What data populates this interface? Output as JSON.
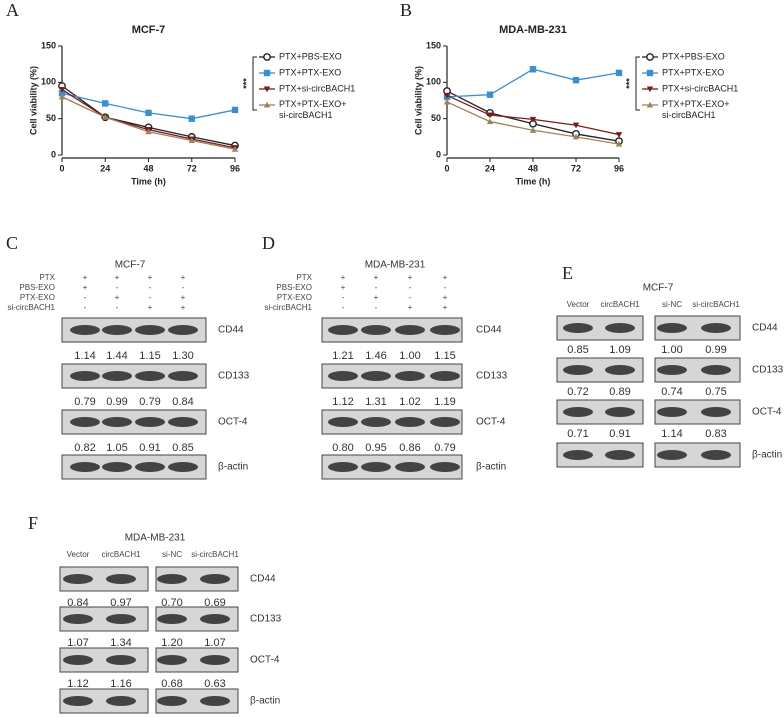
{
  "panel_labels": [
    "A",
    "B",
    "C",
    "D",
    "E",
    "F"
  ],
  "chart_data": [
    {
      "type": "line",
      "title": "MCF-7",
      "x_label": "Time (h)",
      "y_label": "Cell viability (%)",
      "x": [
        0,
        24,
        48,
        72,
        96
      ],
      "xlim": [
        0,
        96
      ],
      "xticks": [
        0,
        24,
        48,
        72,
        96
      ],
      "ylim": [
        0,
        150
      ],
      "yticks": [
        0,
        50,
        100,
        150
      ],
      "significance": "***",
      "series": [
        {
          "name": "PTX+PBS-EXO",
          "color": "#222222",
          "marker": "circle",
          "values": [
            95,
            52,
            38,
            25,
            13
          ]
        },
        {
          "name": "PTX+PTX-EXO",
          "color": "#3b8fd0",
          "marker": "square",
          "values": [
            85,
            71,
            58,
            50,
            62
          ]
        },
        {
          "name": "PTX+si-circBACH1",
          "color": "#7a1c1c",
          "marker": "triangle-down",
          "values": [
            90,
            52,
            35,
            22,
            10
          ]
        },
        {
          "name": "PTX+PTX-EXO+si-circBACH1",
          "color": "#a0825a",
          "marker": "triangle-up",
          "values": [
            80,
            52,
            32,
            20,
            8
          ]
        }
      ]
    },
    {
      "type": "line",
      "title": "MDA-MB-231",
      "x_label": "Time (h)",
      "y_label": "Cell viability (%)",
      "x": [
        0,
        24,
        48,
        72,
        96
      ],
      "xlim": [
        0,
        96
      ],
      "xticks": [
        0,
        24,
        48,
        72,
        96
      ],
      "ylim": [
        0,
        150
      ],
      "yticks": [
        0,
        50,
        100,
        150
      ],
      "significance": "***",
      "series": [
        {
          "name": "PTX+PBS-EXO",
          "color": "#222222",
          "marker": "circle",
          "values": [
            88,
            58,
            43,
            29,
            19
          ]
        },
        {
          "name": "PTX+PTX-EXO",
          "color": "#3b8fd0",
          "marker": "square",
          "values": [
            80,
            83,
            118,
            103,
            113
          ]
        },
        {
          "name": "PTX+si-circBACH1",
          "color": "#7a1c1c",
          "marker": "triangle-down",
          "values": [
            82,
            55,
            49,
            41,
            28
          ]
        },
        {
          "name": "PTX+PTX-EXO+si-circBACH1",
          "color": "#a0825a",
          "marker": "triangle-up",
          "values": [
            73,
            46,
            34,
            25,
            15
          ]
        }
      ]
    }
  ],
  "blots": [
    {
      "title": "MCF-7",
      "treatments": [
        {
          "label": "PTX",
          "signs": [
            "+",
            "+",
            "+",
            "+"
          ]
        },
        {
          "label": "PBS-EXO",
          "signs": [
            "+",
            "-",
            "-",
            "-"
          ]
        },
        {
          "label": "PTX-EXO",
          "signs": [
            "-",
            "+",
            "-",
            "+"
          ]
        },
        {
          "label": "si-circBACH1",
          "signs": [
            "-",
            "-",
            "+",
            "+"
          ]
        }
      ],
      "proteins": [
        {
          "name": "CD44",
          "values": [
            "1.14",
            "1.44",
            "1.15",
            "1.30"
          ]
        },
        {
          "name": "CD133",
          "values": [
            "0.79",
            "0.99",
            "0.79",
            "0.84"
          ]
        },
        {
          "name": "OCT-4",
          "values": [
            "0.82",
            "1.05",
            "0.91",
            "0.85"
          ]
        },
        {
          "name": "β-actin"
        }
      ]
    },
    {
      "title": "MDA-MB-231",
      "treatments": [
        {
          "label": "PTX",
          "signs": [
            "+",
            "+",
            "+",
            "+"
          ]
        },
        {
          "label": "PBS-EXO",
          "signs": [
            "+",
            "-",
            "-",
            "-"
          ]
        },
        {
          "label": "PTX-EXO",
          "signs": [
            "-",
            "+",
            "-",
            "+"
          ]
        },
        {
          "label": "si-circBACH1",
          "signs": [
            "-",
            "-",
            "+",
            "+"
          ]
        }
      ],
      "proteins": [
        {
          "name": "CD44",
          "values": [
            "1.21",
            "1.46",
            "1.00",
            "1.15"
          ]
        },
        {
          "name": "CD133",
          "values": [
            "1.12",
            "1.31",
            "1.02",
            "1.19"
          ]
        },
        {
          "name": "OCT-4",
          "values": [
            "0.80",
            "0.95",
            "0.86",
            "0.79"
          ]
        },
        {
          "name": "β-actin"
        }
      ]
    },
    {
      "title": "MCF-7",
      "lanes": [
        "Vector",
        "circBACH1",
        "si-NC",
        "si-circBACH1"
      ],
      "proteins": [
        {
          "name": "CD44",
          "values": [
            "0.85",
            "1.09",
            "1.00",
            "0.99"
          ]
        },
        {
          "name": "CD133",
          "values": [
            "0.72",
            "0.89",
            "0.74",
            "0.75"
          ]
        },
        {
          "name": "OCT-4",
          "values": [
            "0.71",
            "0.91",
            "1.14",
            "0.83"
          ]
        },
        {
          "name": "β-actin"
        }
      ]
    },
    {
      "title": "MDA-MB-231",
      "lanes": [
        "Vector",
        "circBACH1",
        "si-NC",
        "si-circBACH1"
      ],
      "proteins": [
        {
          "name": "CD44",
          "values": [
            "0.84",
            "0.97",
            "0.70",
            "0.69"
          ]
        },
        {
          "name": "CD133",
          "values": [
            "1.07",
            "1.34",
            "1.20",
            "1.07"
          ]
        },
        {
          "name": "OCT-4",
          "values": [
            "1.12",
            "1.16",
            "0.68",
            "0.63"
          ]
        },
        {
          "name": "β-actin"
        }
      ]
    }
  ]
}
